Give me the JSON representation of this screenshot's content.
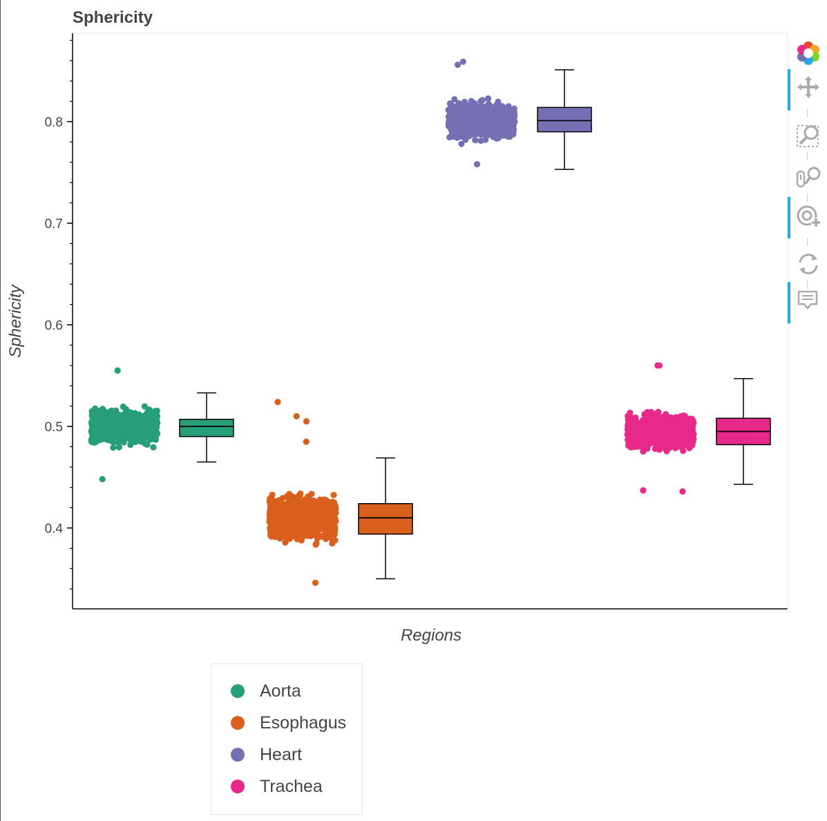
{
  "chart_data": {
    "type": "box",
    "title": "Sphericity",
    "xlabel": "Regions",
    "ylabel": "Sphericity",
    "ylim": [
      0.34,
      0.9
    ],
    "yticks": [
      "0.4",
      "0.5",
      "0.6",
      "0.7",
      "0.8"
    ],
    "ytick_values": [
      0.4,
      0.5,
      0.6,
      0.7,
      0.8
    ],
    "categories": [
      "Aorta",
      "Esophagus",
      "Heart",
      "Trachea"
    ],
    "series": [
      {
        "name": "Aorta",
        "color": "#279e7a",
        "box": {
          "whisker_low": 0.465,
          "q1": 0.49,
          "median": 0.5,
          "q3": 0.507,
          "whisker_high": 0.533
        },
        "scatter_range": [
          0.46,
          0.54
        ],
        "outliers": [
          0.555,
          0.448
        ]
      },
      {
        "name": "Esophagus",
        "color": "#d95f1d",
        "box": {
          "whisker_low": 0.35,
          "q1": 0.394,
          "median": 0.41,
          "q3": 0.424,
          "whisker_high": 0.469
        },
        "scatter_range": [
          0.36,
          0.465
        ],
        "outliers": [
          0.524,
          0.51,
          0.505,
          0.346,
          0.485
        ]
      },
      {
        "name": "Heart",
        "color": "#7570b3",
        "box": {
          "whisker_low": 0.753,
          "q1": 0.79,
          "median": 0.801,
          "q3": 0.814,
          "whisker_high": 0.851
        },
        "scatter_range": [
          0.763,
          0.845
        ],
        "outliers": [
          0.859,
          0.856,
          0.758
        ]
      },
      {
        "name": "Trachea",
        "color": "#e7298a",
        "box": {
          "whisker_low": 0.443,
          "q1": 0.482,
          "median": 0.495,
          "q3": 0.508,
          "whisker_high": 0.547
        },
        "scatter_range": [
          0.455,
          0.54
        ],
        "outliers": [
          0.56,
          0.56,
          0.436,
          0.437
        ]
      }
    ],
    "legend_position": "bottom-left"
  },
  "toolbar": {
    "tools": [
      "bokeh-logo-icon",
      "pan-icon",
      "box-zoom-icon",
      "wheel-zoom-icon",
      "tap-icon",
      "reset-icon",
      "hover-icon"
    ]
  }
}
